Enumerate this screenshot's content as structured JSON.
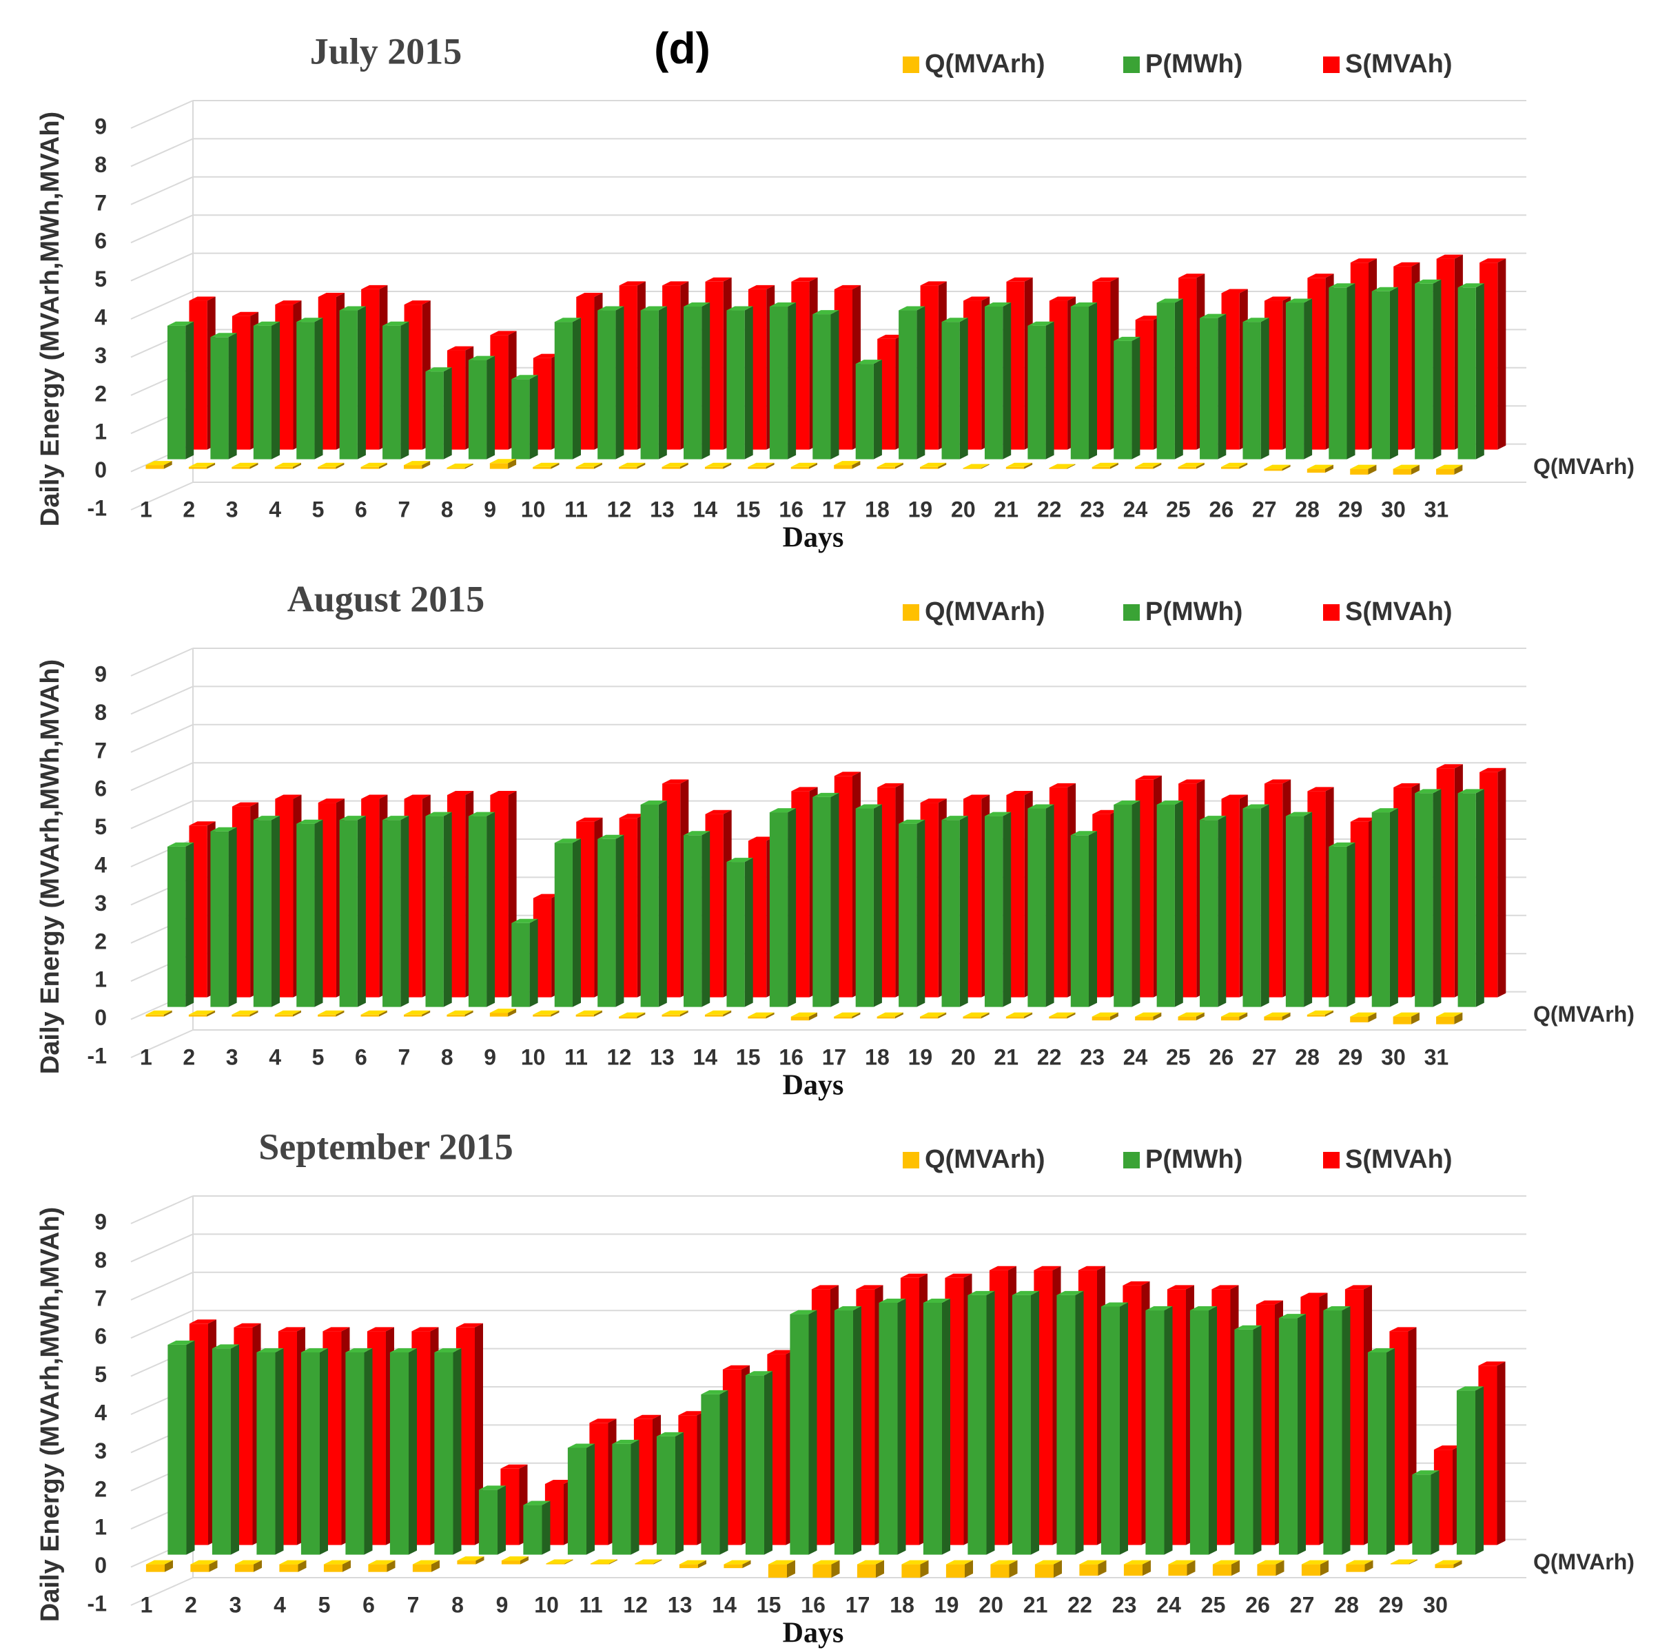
{
  "panel_label": "(d)",
  "chart_data": [
    {
      "type": "bar3d",
      "title": "July 2015",
      "xlabel": "Days",
      "ylabel": "Daily Energy (MVArh,MWh,MVAh)",
      "categories": [
        "1",
        "2",
        "3",
        "4",
        "5",
        "6",
        "7",
        "8",
        "9",
        "10",
        "11",
        "12",
        "13",
        "14",
        "15",
        "16",
        "17",
        "18",
        "19",
        "20",
        "21",
        "22",
        "23",
        "24",
        "25",
        "26",
        "27",
        "28",
        "29",
        "30",
        "31"
      ],
      "series": [
        {
          "name": "Q(MVArh)",
          "color": "#ffc000",
          "values": [
            0.1,
            0.05,
            0.05,
            0.05,
            0.05,
            0.05,
            0.1,
            0.03,
            0.15,
            0.05,
            0.05,
            0.05,
            0.05,
            0.05,
            0.05,
            0.05,
            0.1,
            0.05,
            0.05,
            0.02,
            0.05,
            0.02,
            0.05,
            0.05,
            0.05,
            0.05,
            -0.05,
            -0.1,
            -0.15,
            -0.15,
            -0.15
          ]
        },
        {
          "name": "P(MWh)",
          "color": "#3aa335",
          "values": [
            3.5,
            3.2,
            3.5,
            3.6,
            3.9,
            3.5,
            2.3,
            2.6,
            2.1,
            3.6,
            3.9,
            3.9,
            4.0,
            3.9,
            4.0,
            3.8,
            2.5,
            3.9,
            3.6,
            4.0,
            3.5,
            4.0,
            3.1,
            4.1,
            3.7,
            3.6,
            4.1,
            4.5,
            4.4,
            4.6,
            4.5
          ]
        },
        {
          "name": "S(MVAh)",
          "color": "#ff0000",
          "values": [
            3.9,
            3.5,
            3.8,
            4.0,
            4.2,
            3.8,
            2.6,
            3.0,
            2.4,
            4.0,
            4.3,
            4.3,
            4.4,
            4.2,
            4.4,
            4.2,
            2.9,
            4.3,
            3.9,
            4.4,
            3.9,
            4.4,
            3.4,
            4.5,
            4.1,
            3.9,
            4.5,
            4.9,
            4.8,
            5.0,
            4.9
          ]
        }
      ],
      "ylim": [
        -1,
        9
      ],
      "yticks": [
        -1,
        0,
        1,
        2,
        3,
        4,
        5,
        6,
        7,
        8,
        9
      ],
      "grid": true
    },
    {
      "type": "bar3d",
      "title": "August 2015",
      "xlabel": "Days",
      "ylabel": "Daily Energy (MVArh,MWh,MVAh)",
      "categories": [
        "1",
        "2",
        "3",
        "4",
        "5",
        "6",
        "7",
        "8",
        "9",
        "10",
        "11",
        "12",
        "13",
        "14",
        "15",
        "16",
        "17",
        "18",
        "19",
        "20",
        "21",
        "22",
        "23",
        "24",
        "25",
        "26",
        "27",
        "28",
        "29",
        "30",
        "31"
      ],
      "series": [
        {
          "name": "Q(MVArh)",
          "color": "#ffc000",
          "values": [
            0.05,
            0.05,
            0.05,
            0.05,
            0.05,
            0.05,
            0.05,
            0.05,
            0.1,
            0.05,
            0.05,
            -0.05,
            0.05,
            0.05,
            -0.05,
            -0.1,
            -0.05,
            -0.05,
            -0.05,
            -0.05,
            -0.05,
            -0.05,
            -0.1,
            -0.1,
            -0.1,
            -0.1,
            -0.1,
            0.05,
            -0.15,
            -0.2,
            -0.2
          ]
        },
        {
          "name": "P(MWh)",
          "color": "#3aa335",
          "values": [
            4.2,
            4.6,
            4.9,
            4.8,
            4.9,
            4.9,
            5.0,
            5.0,
            2.2,
            4.3,
            4.4,
            5.3,
            4.5,
            3.8,
            5.1,
            5.5,
            5.2,
            4.8,
            4.9,
            5.0,
            5.2,
            4.5,
            5.3,
            5.3,
            4.9,
            5.2,
            5.0,
            4.2,
            5.1,
            5.6,
            5.6
          ]
        },
        {
          "name": "S(MVAh)",
          "color": "#ff0000",
          "values": [
            4.5,
            5.0,
            5.2,
            5.1,
            5.2,
            5.2,
            5.3,
            5.3,
            2.6,
            4.6,
            4.7,
            5.6,
            4.8,
            4.1,
            5.4,
            5.8,
            5.5,
            5.1,
            5.2,
            5.3,
            5.5,
            4.8,
            5.7,
            5.6,
            5.2,
            5.6,
            5.4,
            4.6,
            5.5,
            6.0,
            5.9
          ]
        }
      ],
      "ylim": [
        -1,
        9
      ],
      "yticks": [
        -1,
        0,
        1,
        2,
        3,
        4,
        5,
        6,
        7,
        8,
        9
      ],
      "grid": true
    },
    {
      "type": "bar3d",
      "title": "September 2015",
      "xlabel": "Days",
      "ylabel": "Daily Energy (MVArh,MWh,MVAh)",
      "categories": [
        "1",
        "2",
        "3",
        "4",
        "5",
        "6",
        "7",
        "8",
        "9",
        "10",
        "11",
        "12",
        "13",
        "14",
        "15",
        "16",
        "17",
        "18",
        "19",
        "20",
        "21",
        "22",
        "23",
        "24",
        "25",
        "26",
        "27",
        "28",
        "29",
        "30"
      ],
      "series": [
        {
          "name": "Q(MVArh)",
          "color": "#ffc000",
          "values": [
            -0.2,
            -0.2,
            -0.2,
            -0.2,
            -0.2,
            -0.2,
            -0.2,
            0.1,
            0.1,
            0.02,
            0.02,
            0.02,
            -0.1,
            -0.1,
            -0.35,
            -0.35,
            -0.35,
            -0.35,
            -0.35,
            -0.35,
            -0.35,
            -0.3,
            -0.3,
            -0.3,
            -0.3,
            -0.3,
            -0.3,
            -0.2,
            0.02,
            -0.1
          ]
        },
        {
          "name": "P(MWh)",
          "color": "#3aa335",
          "values": [
            5.5,
            5.4,
            5.3,
            5.3,
            5.3,
            5.3,
            5.3,
            1.7,
            1.3,
            2.8,
            2.9,
            3.1,
            4.2,
            4.7,
            6.3,
            6.4,
            6.6,
            6.6,
            6.8,
            6.8,
            6.8,
            6.5,
            6.4,
            6.4,
            5.9,
            6.2,
            6.4,
            5.3,
            2.1,
            4.3
          ]
        },
        {
          "name": "S(MVAh)",
          "color": "#ff0000",
          "values": [
            5.8,
            5.7,
            5.6,
            5.6,
            5.6,
            5.6,
            5.7,
            2.0,
            1.6,
            3.2,
            3.3,
            3.4,
            4.6,
            5.0,
            6.7,
            6.7,
            7.0,
            7.0,
            7.2,
            7.2,
            7.2,
            6.8,
            6.7,
            6.7,
            6.3,
            6.5,
            6.7,
            5.6,
            2.5,
            4.7
          ]
        }
      ],
      "ylim": [
        -1,
        9
      ],
      "yticks": [
        -1,
        0,
        1,
        2,
        3,
        4,
        5,
        6,
        7,
        8,
        9
      ],
      "grid": true
    }
  ]
}
